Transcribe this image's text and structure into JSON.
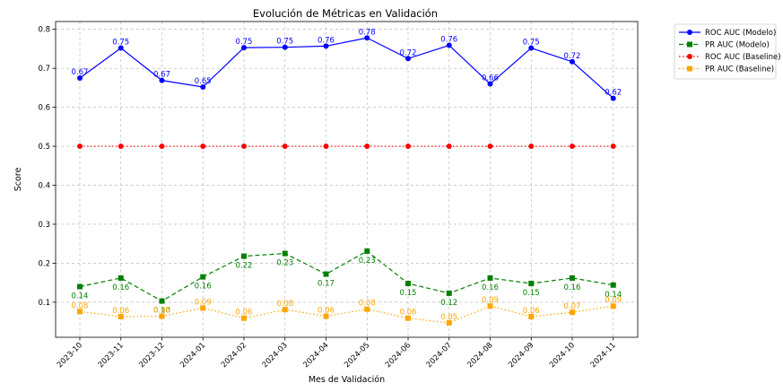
{
  "chart_data": {
    "type": "line",
    "title": "Evolución de Métricas en Validación",
    "xlabel": "Mes de Validación",
    "ylabel": "Score",
    "ylim": [
      0.01,
      0.82
    ],
    "yticks": [
      0.1,
      0.2,
      0.3,
      0.4,
      0.5,
      0.6,
      0.7,
      0.8
    ],
    "ytick_labels": [
      "0.1",
      "0.2",
      "0.3",
      "0.4",
      "0.5",
      "0.6",
      "0.7",
      "0.8"
    ],
    "grid": true,
    "legend_position": "outside-top-right",
    "categories": [
      "2023-10",
      "2023-11",
      "2023-12",
      "2024-01",
      "2024-02",
      "2024-03",
      "2024-04",
      "2024-05",
      "2024-06",
      "2024-07",
      "2024-08",
      "2024-09",
      "2024-10",
      "2024-11"
    ],
    "series": [
      {
        "name": "ROC AUC (Modelo)",
        "color": "#0000ff",
        "line_style": "solid",
        "marker": "circle",
        "values": [
          0.675,
          0.752,
          0.669,
          0.652,
          0.753,
          0.754,
          0.757,
          0.778,
          0.725,
          0.759,
          0.66,
          0.752,
          0.717,
          0.623
        ],
        "labels": [
          "0.67",
          "0.75",
          "0.67",
          "0.65",
          "0.75",
          "0.75",
          "0.76",
          "0.78",
          "0.72",
          "0.76",
          "0.66",
          "0.75",
          "0.72",
          "0.62"
        ],
        "label_position": "above"
      },
      {
        "name": "PR AUC (Modelo)",
        "color": "#008000",
        "line_style": "dashed",
        "marker": "square",
        "values": [
          0.14,
          0.162,
          0.103,
          0.165,
          0.218,
          0.225,
          0.172,
          0.231,
          0.148,
          0.123,
          0.162,
          0.148,
          0.162,
          0.144
        ],
        "labels": [
          "0.14",
          "0.16",
          "0.10",
          "0.16",
          "0.22",
          "0.23",
          "0.17",
          "0.23",
          "0.15",
          "0.12",
          "0.16",
          "0.15",
          "0.16",
          "0.14"
        ],
        "label_position": "below"
      },
      {
        "name": "ROC AUC (Baseline)",
        "color": "#ff0000",
        "line_style": "dotted",
        "marker": "circle",
        "values": [
          0.5,
          0.5,
          0.5,
          0.5,
          0.5,
          0.5,
          0.5,
          0.5,
          0.5,
          0.5,
          0.5,
          0.5,
          0.5,
          0.5
        ],
        "labels": [],
        "label_position": "none"
      },
      {
        "name": "PR AUC (Baseline)",
        "color": "#ffa500",
        "line_style": "dotted",
        "marker": "square",
        "values": [
          0.076,
          0.063,
          0.064,
          0.085,
          0.059,
          0.081,
          0.064,
          0.082,
          0.059,
          0.047,
          0.09,
          0.063,
          0.074,
          0.09
        ],
        "labels": [
          "0.08",
          "0.06",
          "0.06",
          "0.09",
          "0.06",
          "0.08",
          "0.06",
          "0.08",
          "0.06",
          "0.05",
          "0.09",
          "0.06",
          "0.07",
          "0.09"
        ],
        "label_position": "above"
      }
    ]
  }
}
